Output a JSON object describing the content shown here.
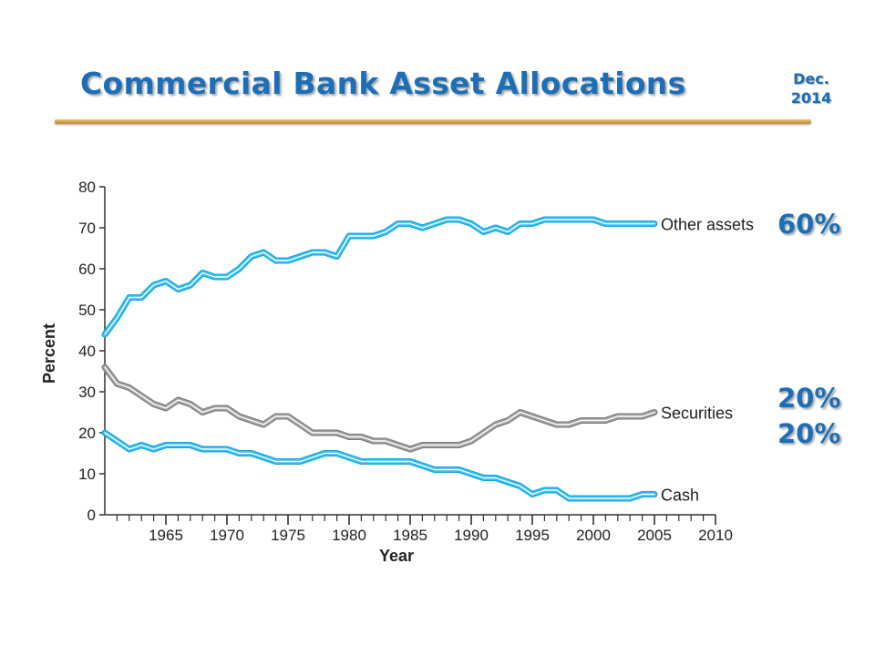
{
  "slide": {
    "title": "Commercial Bank Asset Allocations",
    "date_line1": "Dec.",
    "date_line2": "2014",
    "callouts": [
      "60%",
      "20%",
      "20%"
    ]
  },
  "colors": {
    "title": "#1c6fb6",
    "rule": "#d9a04a",
    "blue_series": "#33bdf0",
    "gray_series": "#9e9e9e"
  },
  "chart_data": {
    "type": "line",
    "xlabel": "Year",
    "ylabel": "Percent",
    "xlim": [
      1960,
      2010
    ],
    "ylim": [
      0,
      80
    ],
    "xticks": [
      1965,
      1970,
      1975,
      1980,
      1985,
      1990,
      1995,
      2000,
      2005,
      2010
    ],
    "yticks": [
      0,
      10,
      20,
      30,
      40,
      50,
      60,
      70,
      80
    ],
    "grid": false,
    "series": [
      {
        "name": "Other assets",
        "color": "#33bdf0",
        "x": [
          1960,
          1961,
          1962,
          1963,
          1964,
          1965,
          1966,
          1967,
          1968,
          1969,
          1970,
          1971,
          1972,
          1973,
          1974,
          1975,
          1976,
          1977,
          1978,
          1979,
          1980,
          1981,
          1982,
          1983,
          1984,
          1985,
          1986,
          1987,
          1988,
          1989,
          1990,
          1991,
          1992,
          1993,
          1994,
          1995,
          1996,
          1997,
          1998,
          1999,
          2000,
          2001,
          2002,
          2003,
          2004,
          2005
        ],
        "values": [
          44,
          48,
          53,
          53,
          56,
          57,
          55,
          56,
          59,
          58,
          58,
          60,
          63,
          64,
          62,
          62,
          63,
          64,
          64,
          63,
          68,
          68,
          68,
          69,
          71,
          71,
          70,
          71,
          72,
          72,
          71,
          69,
          70,
          69,
          71,
          71,
          72,
          72,
          72,
          72,
          72,
          71,
          71,
          71,
          71,
          71
        ]
      },
      {
        "name": "Securities",
        "color": "#9e9e9e",
        "x": [
          1960,
          1961,
          1962,
          1963,
          1964,
          1965,
          1966,
          1967,
          1968,
          1969,
          1970,
          1971,
          1972,
          1973,
          1974,
          1975,
          1976,
          1977,
          1978,
          1979,
          1980,
          1981,
          1982,
          1983,
          1984,
          1985,
          1986,
          1987,
          1988,
          1989,
          1990,
          1991,
          1992,
          1993,
          1994,
          1995,
          1996,
          1997,
          1998,
          1999,
          2000,
          2001,
          2002,
          2003,
          2004,
          2005
        ],
        "values": [
          36,
          32,
          31,
          29,
          27,
          26,
          28,
          27,
          25,
          26,
          26,
          24,
          23,
          22,
          24,
          24,
          22,
          20,
          20,
          20,
          19,
          19,
          18,
          18,
          17,
          16,
          17,
          17,
          17,
          17,
          18,
          20,
          22,
          23,
          25,
          24,
          23,
          22,
          22,
          23,
          23,
          23,
          24,
          24,
          24,
          25
        ]
      },
      {
        "name": "Cash",
        "color": "#33bdf0",
        "x": [
          1960,
          1961,
          1962,
          1963,
          1964,
          1965,
          1966,
          1967,
          1968,
          1969,
          1970,
          1971,
          1972,
          1973,
          1974,
          1975,
          1976,
          1977,
          1978,
          1979,
          1980,
          1981,
          1982,
          1983,
          1984,
          1985,
          1986,
          1987,
          1988,
          1989,
          1990,
          1991,
          1992,
          1993,
          1994,
          1995,
          1996,
          1997,
          1998,
          1999,
          2000,
          2001,
          2002,
          2003,
          2004,
          2005
        ],
        "values": [
          20,
          18,
          16,
          17,
          16,
          17,
          17,
          17,
          16,
          16,
          16,
          15,
          15,
          14,
          13,
          13,
          13,
          14,
          15,
          15,
          14,
          13,
          13,
          13,
          13,
          13,
          12,
          11,
          11,
          11,
          10,
          9,
          9,
          8,
          7,
          5,
          6,
          6,
          4,
          4,
          4,
          4,
          4,
          4,
          5,
          5
        ]
      }
    ]
  }
}
